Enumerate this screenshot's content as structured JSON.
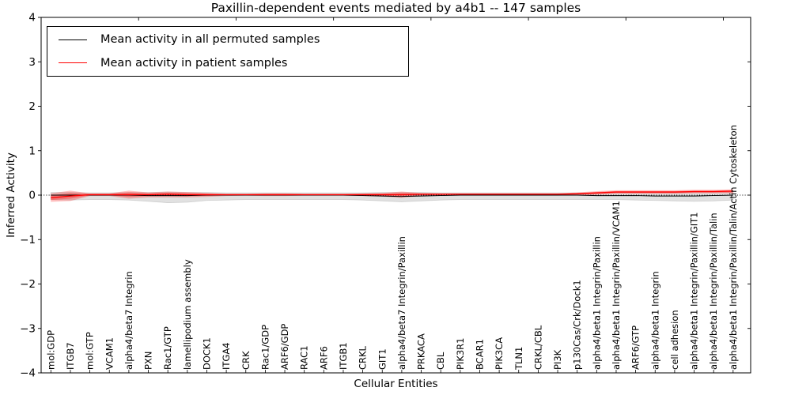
{
  "title": "Paxillin-dependent events mediated by a4b1 -- 147 samples",
  "chart_data": {
    "type": "line",
    "title": "Paxillin-dependent events mediated by a4b1 -- 147 samples",
    "xlabel": "Cellular Entities",
    "ylabel": "Inferred Activity",
    "ylim": [
      -4,
      4
    ],
    "ytick_labels": [
      "4",
      "3",
      "2",
      "1",
      "0",
      "−1",
      "−2",
      "−3",
      "−4"
    ],
    "ytick_values": [
      4,
      3,
      2,
      1,
      0,
      -1,
      -2,
      -3,
      -4
    ],
    "grid": false,
    "legend_position": "upper-left",
    "zero_reference_line": true,
    "categories": [
      "mol:GDP",
      "ITGB7",
      "mol:GTP",
      "VCAM1",
      "alpha4/beta7 Integrin",
      "PXN",
      "Rac1/GTP",
      "lamellipodium assembly",
      "DOCK1",
      "ITGA4",
      "CRK",
      "Rac1/GDP",
      "ARF6/GDP",
      "RAC1",
      "ARF6",
      "ITGB1",
      "CRKL",
      "GIT1",
      "alpha4/beta7 Integrin/Paxillin",
      "PRKACA",
      "CBL",
      "PIK3R1",
      "BCAR1",
      "PIK3CA",
      "TLN1",
      "CRKL/CBL",
      "PI3K",
      "p130Cas/Crk/Dock1",
      "alpha4/beta1 Integrin/Paxillin",
      "alpha4/beta1 Integrin/Paxillin/VCAM1",
      "ARF6/GTP",
      "alpha4/beta1 Integrin",
      "cell adhesion",
      "alpha4/beta1 Integrin/Paxillin/GIT1",
      "alpha4/beta1 Integrin/Paxillin/Talin",
      "alpha4/beta1 Integrin/Paxillin/Talin/Actin Cytoskeleton"
    ],
    "series": [
      {
        "name": "Mean activity in all permuted samples",
        "color": "#000000",
        "values": [
          0,
          0,
          0,
          0,
          0,
          -0.01,
          -0.01,
          -0.01,
          0,
          0,
          0,
          0,
          0,
          0,
          0,
          0,
          -0.01,
          -0.02,
          -0.03,
          -0.02,
          -0.01,
          0,
          0,
          0,
          0,
          0,
          0,
          0,
          -0.01,
          -0.01,
          -0.01,
          -0.02,
          -0.02,
          -0.02,
          -0.01,
          0
        ]
      },
      {
        "name": "Mean activity in patient samples",
        "color": "#ff0000",
        "values": [
          -0.06,
          -0.02,
          0.01,
          0.01,
          0.01,
          0.01,
          0.02,
          0.01,
          0.01,
          0.01,
          0.01,
          0.01,
          0.01,
          0.01,
          0.01,
          0.01,
          0.01,
          0.01,
          0.01,
          0.02,
          0.02,
          0.02,
          0.02,
          0.02,
          0.02,
          0.02,
          0.02,
          0.03,
          0.05,
          0.07,
          0.07,
          0.07,
          0.07,
          0.08,
          0.08,
          0.09
        ]
      }
    ],
    "bands": [
      {
        "name": "permuted-samples-spread",
        "color": "#aaaaaa",
        "upper": [
          0.06,
          0.06,
          0.05,
          0.05,
          0.06,
          0.06,
          0.07,
          0.06,
          0.06,
          0.05,
          0.05,
          0.05,
          0.05,
          0.05,
          0.05,
          0.05,
          0.05,
          0.06,
          0.06,
          0.06,
          0.05,
          0.05,
          0.05,
          0.05,
          0.05,
          0.05,
          0.05,
          0.05,
          0.05,
          0.06,
          0.06,
          0.06,
          0.06,
          0.06,
          0.06,
          0.06
        ],
        "lower": [
          -0.1,
          -0.11,
          -0.1,
          -0.1,
          -0.11,
          -0.14,
          -0.17,
          -0.16,
          -0.12,
          -0.11,
          -0.1,
          -0.1,
          -0.1,
          -0.1,
          -0.1,
          -0.1,
          -0.11,
          -0.13,
          -0.15,
          -0.13,
          -0.11,
          -0.1,
          -0.1,
          -0.1,
          -0.1,
          -0.1,
          -0.1,
          -0.1,
          -0.1,
          -0.1,
          -0.11,
          -0.12,
          -0.13,
          -0.14,
          -0.13,
          -0.11
        ]
      },
      {
        "name": "patient-samples-spread",
        "color": "#ff0000",
        "upper": [
          0.04,
          0.1,
          0.04,
          0.04,
          0.1,
          0.06,
          0.08,
          0.07,
          0.05,
          0.03,
          0.03,
          0.04,
          0.04,
          0.03,
          0.03,
          0.03,
          0.04,
          0.05,
          0.08,
          0.05,
          0.04,
          0.04,
          0.04,
          0.04,
          0.04,
          0.04,
          0.04,
          0.06,
          0.09,
          0.11,
          0.11,
          0.11,
          0.11,
          0.12,
          0.12,
          0.13
        ],
        "lower": [
          -0.15,
          -0.13,
          -0.02,
          -0.02,
          -0.08,
          -0.05,
          -0.05,
          -0.05,
          -0.04,
          -0.02,
          -0.01,
          -0.02,
          -0.02,
          -0.01,
          -0.01,
          -0.01,
          -0.02,
          -0.03,
          -0.06,
          -0.02,
          -0.01,
          -0.01,
          -0.01,
          -0.01,
          -0.01,
          -0.01,
          -0.01,
          0.0,
          0.01,
          0.03,
          0.03,
          0.03,
          0.03,
          0.04,
          0.04,
          0.04
        ]
      }
    ]
  }
}
